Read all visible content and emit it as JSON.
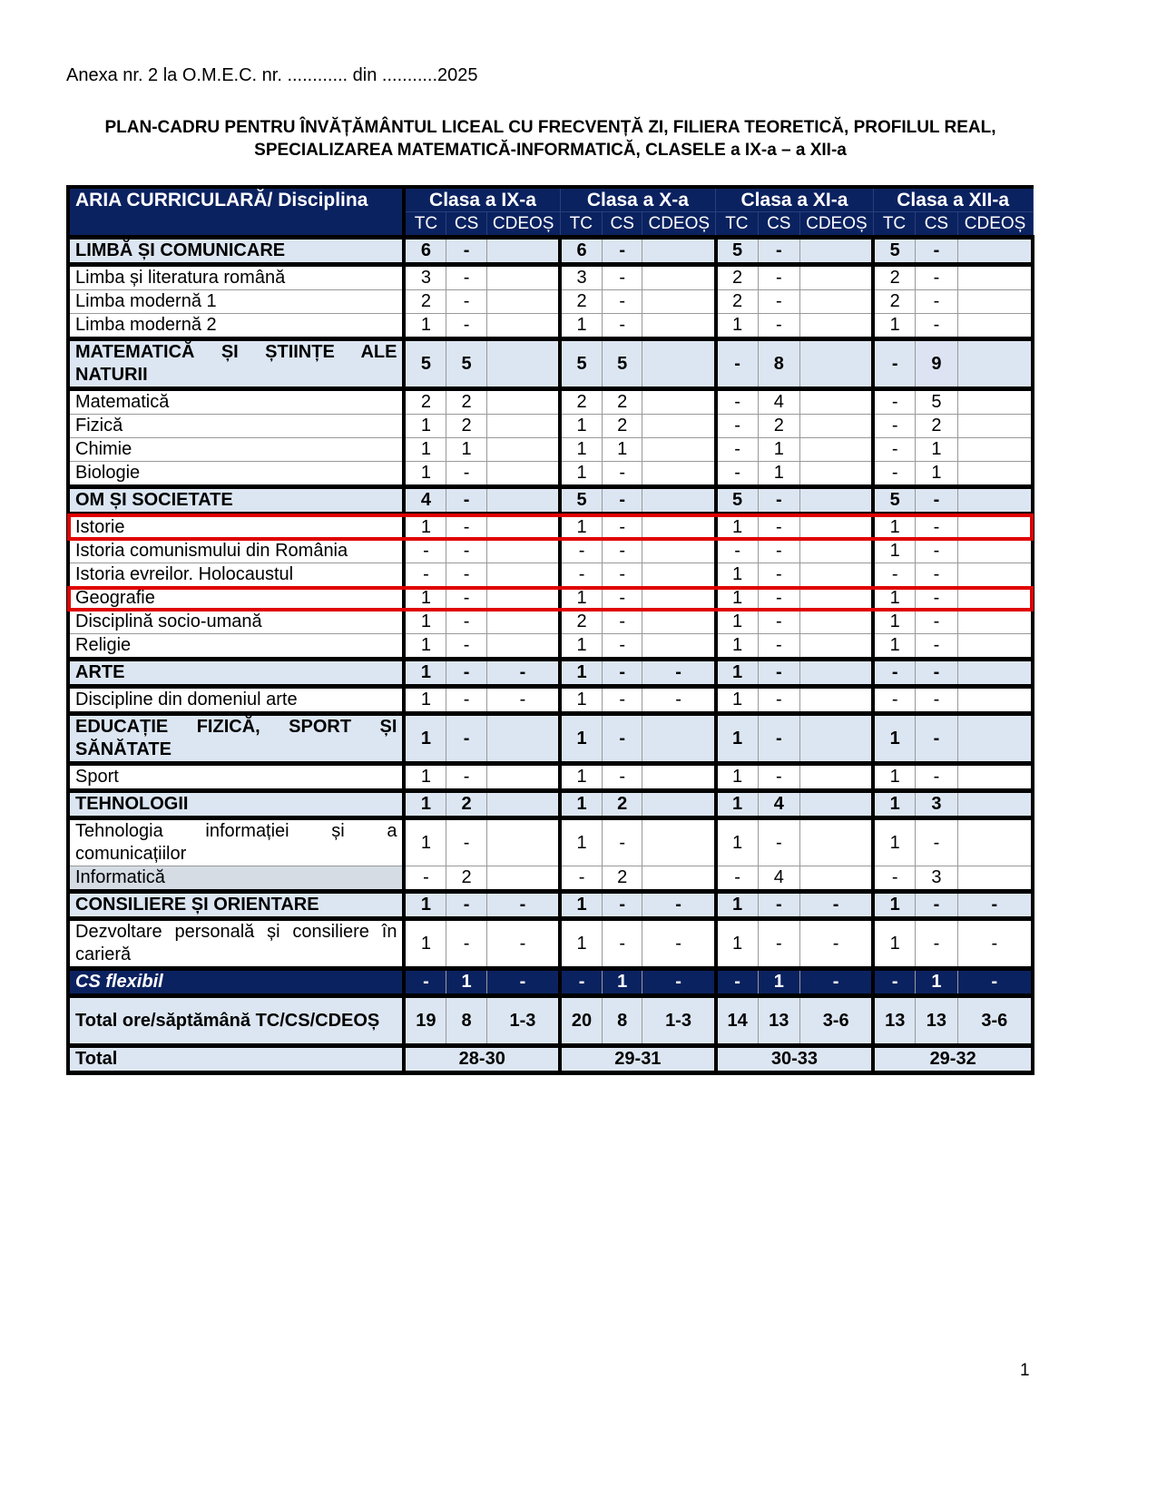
{
  "annex": "Anexa nr. 2 la O.M.E.C. nr. ............ din ...........2025",
  "title": "PLAN-CADRU PENTRU ÎNVĂȚĂMÂNTUL LICEAL CU FRECVENȚĂ ZI, FILIERA TEORETICĂ, PROFILUL REAL, SPECIALIZAREA MATEMATICĂ-INFORMATICĂ, CLASELE a IX-a – a XII-a",
  "page_number": "1",
  "header": {
    "label": "ARIA CURRICULARĂ/ Disciplina",
    "classes": [
      "Clasa a IX-a",
      "Clasa a X-a",
      "Clasa a XI-a",
      "Clasa a XII-a"
    ],
    "subcols": [
      "TC",
      "CS",
      "CDEOȘ"
    ]
  },
  "highlight_color": "#e00000",
  "header_color": "#0b2260",
  "rows": [
    {
      "type": "cat",
      "label": "LIMBĂ ȘI COMUNICARE",
      "values": [
        "6",
        "-",
        "",
        "6",
        "-",
        "",
        "5",
        "-",
        "",
        "5",
        "-",
        ""
      ]
    },
    {
      "type": "sub",
      "label": "Limba și literatura română",
      "values": [
        "3",
        "-",
        "",
        "3",
        "-",
        "",
        "2",
        "-",
        "",
        "2",
        "-",
        ""
      ]
    },
    {
      "type": "sub",
      "label": "Limba modernă 1",
      "values": [
        "2",
        "-",
        "",
        "2",
        "-",
        "",
        "2",
        "-",
        "",
        "2",
        "-",
        ""
      ]
    },
    {
      "type": "sub",
      "label": "Limba modernă 2",
      "values": [
        "1",
        "-",
        "",
        "1",
        "-",
        "",
        "1",
        "-",
        "",
        "1",
        "-",
        ""
      ]
    },
    {
      "type": "cat",
      "wide": true,
      "label": "MATEMATICĂ ȘI ȘTIINȚE ALE NATURII",
      "values": [
        "5",
        "5",
        "",
        "5",
        "5",
        "",
        "-",
        "8",
        "",
        "-",
        "9",
        ""
      ]
    },
    {
      "type": "sub",
      "label": "Matematică",
      "values": [
        "2",
        "2",
        "",
        "2",
        "2",
        "",
        "-",
        "4",
        "",
        "-",
        "5",
        ""
      ]
    },
    {
      "type": "sub",
      "label": "Fizică",
      "values": [
        "1",
        "2",
        "",
        "1",
        "2",
        "",
        "-",
        "2",
        "",
        "-",
        "2",
        ""
      ]
    },
    {
      "type": "sub",
      "label": "Chimie",
      "values": [
        "1",
        "1",
        "",
        "1",
        "1",
        "",
        "-",
        "1",
        "",
        "-",
        "1",
        ""
      ]
    },
    {
      "type": "sub",
      "label": "Biologie",
      "values": [
        "1",
        "-",
        "",
        "1",
        "-",
        "",
        "-",
        "1",
        "",
        "-",
        "1",
        ""
      ]
    },
    {
      "type": "cat",
      "label": "OM ȘI SOCIETATE",
      "values": [
        "4",
        "-",
        "",
        "5",
        "-",
        "",
        "5",
        "-",
        "",
        "5",
        "-",
        ""
      ]
    },
    {
      "type": "sub",
      "highlight": true,
      "label": "Istorie",
      "values": [
        "1",
        "-",
        "",
        "1",
        "-",
        "",
        "1",
        "-",
        "",
        "1",
        "-",
        ""
      ]
    },
    {
      "type": "sub",
      "label": "Istoria comunismului din România",
      "values": [
        "-",
        "-",
        "",
        "-",
        "-",
        "",
        "-",
        "-",
        "",
        "1",
        "-",
        ""
      ]
    },
    {
      "type": "sub",
      "label": "Istoria evreilor. Holocaustul",
      "values": [
        "-",
        "-",
        "",
        "-",
        "-",
        "",
        "1",
        "-",
        "",
        "-",
        "-",
        ""
      ]
    },
    {
      "type": "sub",
      "highlight": true,
      "label": "Geografie",
      "values": [
        "1",
        "-",
        "",
        "1",
        "-",
        "",
        "1",
        "-",
        "",
        "1",
        "-",
        ""
      ]
    },
    {
      "type": "sub",
      "label": "Disciplină socio-umană",
      "values": [
        "1",
        "-",
        "",
        "2",
        "-",
        "",
        "1",
        "-",
        "",
        "1",
        "-",
        ""
      ]
    },
    {
      "type": "sub",
      "label": "Religie",
      "values": [
        "1",
        "-",
        "",
        "1",
        "-",
        "",
        "1",
        "-",
        "",
        "1",
        "-",
        ""
      ]
    },
    {
      "type": "cat",
      "label": "ARTE",
      "values": [
        "1",
        "-",
        "-",
        "1",
        "-",
        "-",
        "1",
        "-",
        "",
        "-",
        "-",
        ""
      ]
    },
    {
      "type": "sub",
      "label": "Discipline din domeniul arte",
      "values": [
        "1",
        "-",
        "-",
        "1",
        "-",
        "-",
        "1",
        "-",
        "",
        "-",
        "-",
        ""
      ]
    },
    {
      "type": "cat",
      "wide": true,
      "label": "EDUCAȚIE FIZICĂ, SPORT ȘI SĂNĂTATE",
      "values": [
        "1",
        "-",
        "",
        "1",
        "-",
        "",
        "1",
        "-",
        "",
        "1",
        "-",
        ""
      ]
    },
    {
      "type": "sub",
      "label": "Sport",
      "values": [
        "1",
        "-",
        "",
        "1",
        "-",
        "",
        "1",
        "-",
        "",
        "1",
        "-",
        ""
      ]
    },
    {
      "type": "cat",
      "label": "TEHNOLOGII",
      "values": [
        "1",
        "2",
        "",
        "1",
        "2",
        "",
        "1",
        "4",
        "",
        "1",
        "3",
        ""
      ]
    },
    {
      "type": "sub",
      "wide": true,
      "label": "Tehnologia informației și a comunicațiilor",
      "values": [
        "1",
        "-",
        "",
        "1",
        "-",
        "",
        "1",
        "-",
        "",
        "1",
        "-",
        ""
      ]
    },
    {
      "type": "sub",
      "grey": true,
      "label": "Informatică",
      "values": [
        "-",
        "2",
        "",
        "-",
        "2",
        "",
        "-",
        "4",
        "",
        "-",
        "3",
        ""
      ]
    },
    {
      "type": "cat",
      "label": "CONSILIERE ȘI ORIENTARE",
      "values": [
        "1",
        "-",
        "-",
        "1",
        "-",
        "-",
        "1",
        "-",
        "-",
        "1",
        "-",
        "-"
      ]
    },
    {
      "type": "sub",
      "wide": true,
      "label": "Dezvoltare personală și consiliere în carieră",
      "values": [
        "1",
        "-",
        "-",
        "1",
        "-",
        "-",
        "1",
        "-",
        "-",
        "1",
        "-",
        "-"
      ]
    },
    {
      "type": "flex",
      "label": "CS flexibil",
      "values": [
        "-",
        "1",
        "-",
        "-",
        "1",
        "-",
        "-",
        "1",
        "-",
        "-",
        "1",
        "-"
      ]
    },
    {
      "type": "total",
      "wide": true,
      "label": "Total ore/săptămână TC/CS/CDEOȘ",
      "values": [
        "19",
        "8",
        "1-3",
        "20",
        "8",
        "1-3",
        "14",
        "13",
        "3-6",
        "13",
        "13",
        "3-6"
      ]
    }
  ],
  "grand_total": {
    "label": "Total",
    "values": [
      "28-30",
      "29-31",
      "30-33",
      "29-32"
    ]
  }
}
